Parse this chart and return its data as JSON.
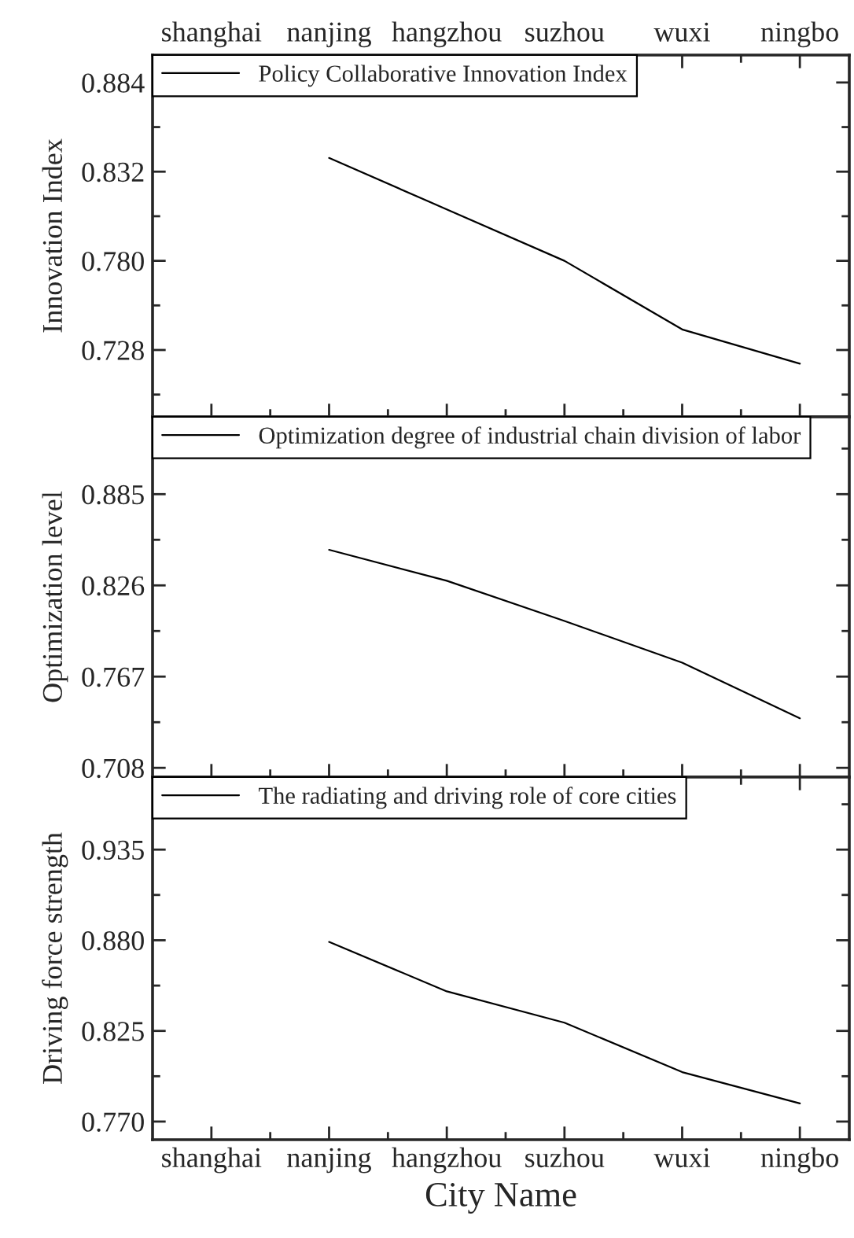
{
  "chart_data": [
    {
      "type": "line",
      "categories": [
        "shanghai",
        "nanjing",
        "hangzhou",
        "suzhou",
        "wuxi",
        "ningbo"
      ],
      "ylabel": "Innovation Index",
      "ylim": [
        0.689,
        0.9
      ],
      "yticks": [
        {
          "value": 0.728,
          "label": "0.728"
        },
        {
          "value": 0.78,
          "label": "0.780"
        },
        {
          "value": 0.832,
          "label": "0.832"
        },
        {
          "value": 0.884,
          "label": "0.884"
        }
      ],
      "series": [
        {
          "name": "Policy Collaborative Innovation Index",
          "color": "#000000",
          "values": [
            null,
            0.84,
            0.81,
            0.78,
            0.74,
            0.72
          ]
        }
      ],
      "legend": "top left",
      "marker": "none",
      "line_style": "solid",
      "grid": false
    },
    {
      "type": "line",
      "categories": [
        null,
        null,
        null,
        null,
        null,
        null
      ],
      "ylabel": "Optimization level",
      "ylim": [
        0.702,
        0.935
      ],
      "yticks": [
        {
          "value": 0.708,
          "label": "0.708"
        },
        {
          "value": 0.767,
          "label": "0.767"
        },
        {
          "value": 0.826,
          "label": "0.826"
        },
        {
          "value": 0.885,
          "label": "0.885"
        }
      ],
      "series": [
        {
          "name": "Optimization degree of industrial chain division of labor",
          "color": "#000000",
          "values": [
            null,
            0.849,
            0.829,
            0.803,
            0.776,
            0.74
          ]
        }
      ],
      "legend": "top left",
      "marker": "none",
      "line_style": "solid",
      "grid": false,
      "tick_labels": "y"
    },
    {
      "type": "line",
      "categories": [
        "shanghai",
        "nanjing",
        "hangzhou",
        "suzhou",
        "wuxi",
        "ningbo"
      ],
      "xlabel": "City Name",
      "ylabel": "Driving force strength",
      "ylim": [
        0.759,
        0.979
      ],
      "yticks": [
        {
          "value": 0.77,
          "label": "0.770"
        },
        {
          "value": 0.825,
          "label": "0.825"
        },
        {
          "value": 0.88,
          "label": "0.880"
        },
        {
          "value": 0.935,
          "label": "0.935"
        }
      ],
      "series": [
        {
          "name": "The radiating and driving role of core cities",
          "color": "#000000",
          "values": [
            null,
            0.879,
            0.849,
            0.83,
            0.8,
            0.781
          ]
        }
      ],
      "legend": "top left",
      "marker": "none",
      "line_style": "solid",
      "grid": false
    }
  ]
}
